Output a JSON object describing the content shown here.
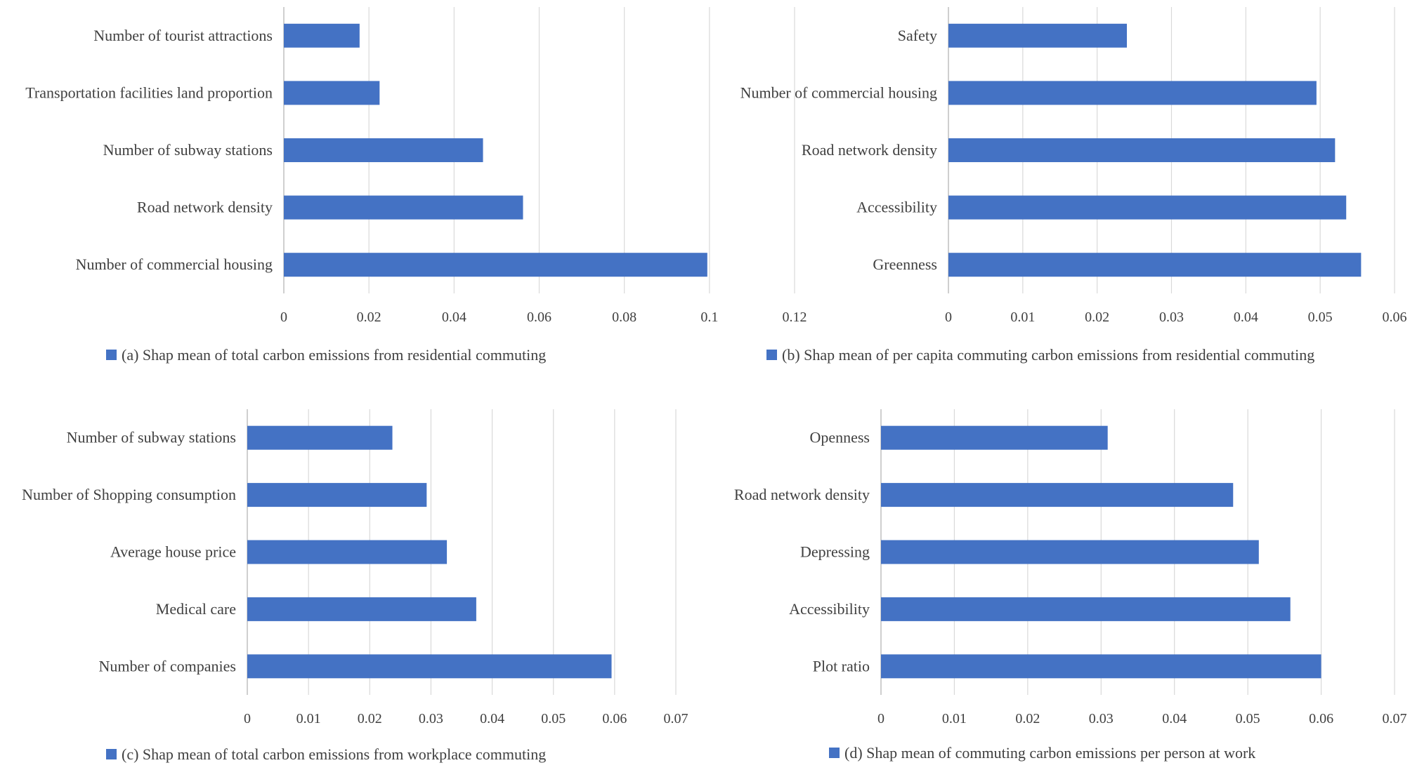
{
  "colors": {
    "bar": "#4472C4",
    "grid": "#D9D9D9",
    "axis": "#BFBFBF",
    "text": "#404040"
  },
  "chart_data": [
    {
      "type": "bar",
      "orientation": "horizontal",
      "categories": [
        "Number of tourist attractions",
        "Transportation facilities land proportion",
        "Number of subway stations",
        "Road network density",
        "Number of commercial housing"
      ],
      "values": [
        0.0178,
        0.0225,
        0.0468,
        0.0562,
        0.0995
      ],
      "xlim": [
        0,
        0.12
      ],
      "ticks": [
        0,
        0.02,
        0.04,
        0.06,
        0.08,
        0.1,
        0.12
      ],
      "tick_labels": [
        "0",
        "0.02",
        "0.04",
        "0.06",
        "0.08",
        "0.1",
        "0.12"
      ],
      "legend": "(a) Shap mean of total carbon emissions from residential commuting",
      "legend_position": "bottom",
      "grid": true
    },
    {
      "type": "bar",
      "orientation": "horizontal",
      "categories": [
        "Safety",
        "Number of commercial housing",
        "Road network density",
        "Accessibility",
        "Greenness"
      ],
      "values": [
        0.024,
        0.0495,
        0.052,
        0.0535,
        0.0555
      ],
      "xlim": [
        0,
        0.06
      ],
      "ticks": [
        0,
        0.01,
        0.02,
        0.03,
        0.04,
        0.05,
        0.06
      ],
      "tick_labels": [
        "0",
        "0.01",
        "0.02",
        "0.03",
        "0.04",
        "0.05",
        "0.06"
      ],
      "legend": "(b) Shap mean of per capita commuting carbon emissions from residential commuting",
      "legend_position": "bottom",
      "grid": true
    },
    {
      "type": "bar",
      "orientation": "horizontal",
      "categories": [
        "Number of subway stations",
        "Number of Shopping consumption",
        "Average house price",
        "Medical care",
        "Number of companies"
      ],
      "values": [
        0.0237,
        0.0293,
        0.0326,
        0.0374,
        0.0595
      ],
      "xlim": [
        0,
        0.07
      ],
      "ticks": [
        0,
        0.01,
        0.02,
        0.03,
        0.04,
        0.05,
        0.06,
        0.07
      ],
      "tick_labels": [
        "0",
        "0.01",
        "0.02",
        "0.03",
        "0.04",
        "0.05",
        "0.06",
        "0.07"
      ],
      "legend": "(c) Shap mean of total carbon emissions from workplace commuting",
      "legend_position": "bottom",
      "grid": true
    },
    {
      "type": "bar",
      "orientation": "horizontal",
      "categories": [
        "Openness",
        "Road network density",
        "Depressing",
        "Accessibility",
        "Plot ratio"
      ],
      "values": [
        0.0309,
        0.048,
        0.0515,
        0.0558,
        0.06
      ],
      "xlim": [
        0,
        0.07
      ],
      "ticks": [
        0,
        0.01,
        0.02,
        0.03,
        0.04,
        0.05,
        0.06,
        0.07
      ],
      "tick_labels": [
        "0",
        "0.01",
        "0.02",
        "0.03",
        "0.04",
        "0.05",
        "0.06",
        "0.07"
      ],
      "legend": "(d) Shap mean of  commuting carbon emissions per person at work",
      "legend_position": "bottom",
      "grid": true
    }
  ]
}
